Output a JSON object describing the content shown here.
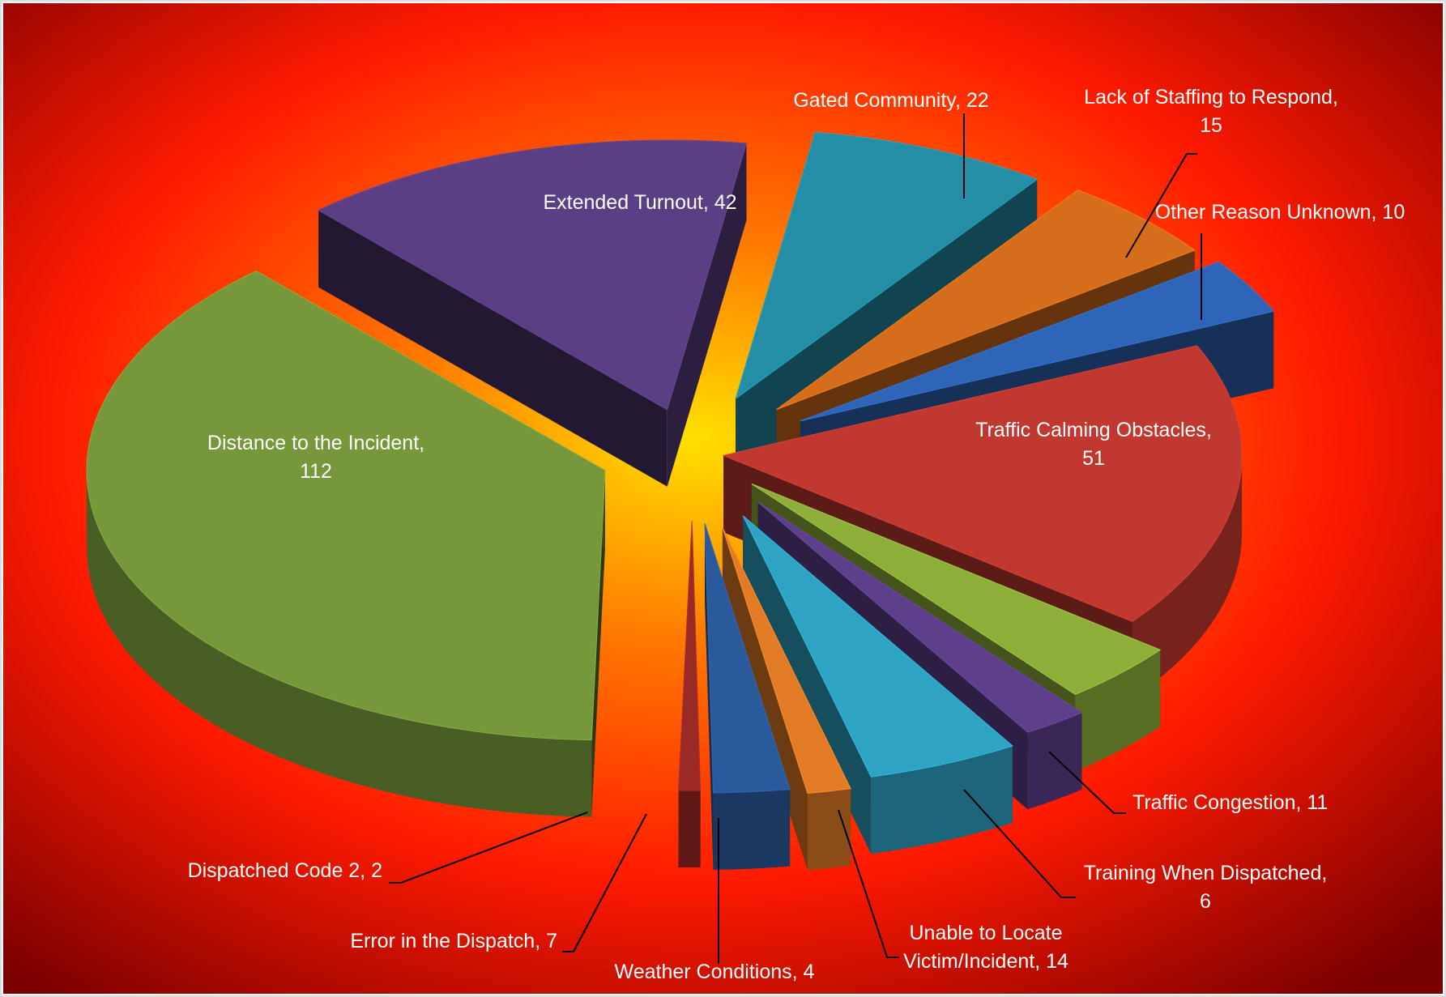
{
  "chart_data": {
    "type": "pie",
    "title": "",
    "style": "3d-exploded",
    "background": {
      "center": "#ffe000",
      "mid": "#ff7a00",
      "edge": "#ff1a00",
      "corner": "#7a0000",
      "frame": "#dddddd"
    },
    "slices": [
      {
        "label": "Distance to the Incident",
        "value": 112,
        "display": "Distance to the Incident,\n112",
        "color": "#76973a"
      },
      {
        "label": "Extended Turnout",
        "value": 42,
        "display": "Extended Turnout, 42",
        "color": "#5a3f84"
      },
      {
        "label": "Gated Community",
        "value": 22,
        "display": "Gated Community, 22",
        "color": "#238ea6"
      },
      {
        "label": "Lack of Staffing to Respond",
        "value": 15,
        "display": "Lack of Staffing to Respond,\n15",
        "color": "#d56d1a"
      },
      {
        "label": "Other Reason Unknown",
        "value": 10,
        "display": "Other Reason Unknown, 10",
        "color": "#2f65b8"
      },
      {
        "label": "Traffic Calming Obstacles",
        "value": 51,
        "display": "Traffic Calming Obstacles,\n51",
        "color": "#c0382f"
      },
      {
        "label": "Traffic Congestion",
        "value": 11,
        "display": "Traffic Congestion, 11",
        "color": "#8daf3a"
      },
      {
        "label": "Training When Dispatched",
        "value": 6,
        "display": "Training When Dispatched,\n6",
        "color": "#5e3f8c"
      },
      {
        "label": "Unable to Locate Victim/Incident",
        "value": 14,
        "display": "Unable to Locate\nVictim/Incident, 14",
        "color": "#2ea3c4"
      },
      {
        "label": "Weather Conditions",
        "value": 4,
        "display": "Weather Conditions, 4",
        "color": "#e17b25"
      },
      {
        "label": "Error in the Dispatch",
        "value": 7,
        "display": "Error in the Dispatch, 7",
        "color": "#2a5a9c"
      },
      {
        "label": "Dispatched Code 2",
        "value": 2,
        "display": "Dispatched Code 2, 2",
        "color": "#9a2a26"
      }
    ]
  }
}
